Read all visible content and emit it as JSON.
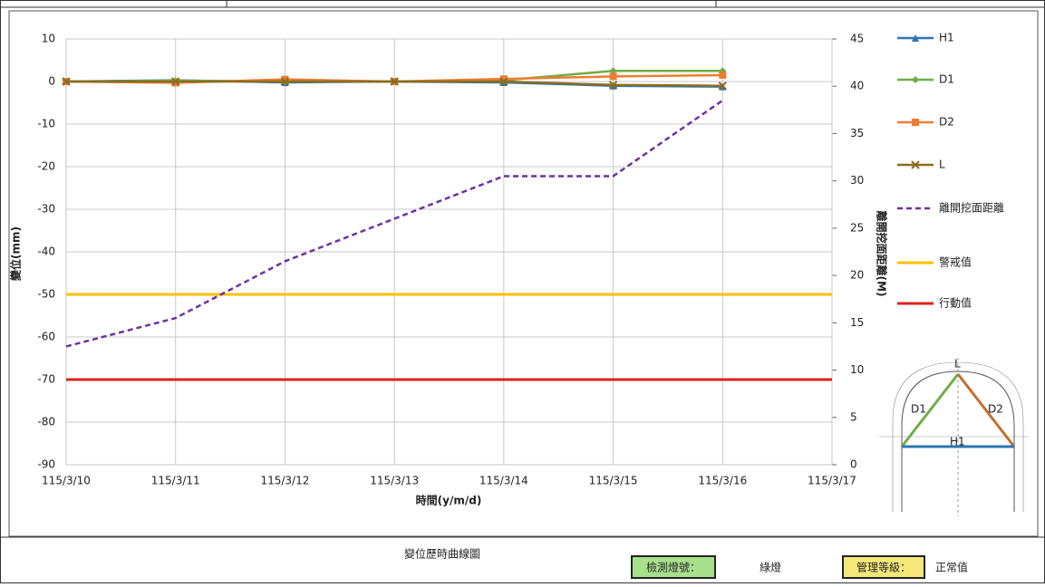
{
  "chart_data": {
    "type": "line",
    "categories": [
      "115/3/10",
      "115/3/11",
      "115/3/12",
      "115/3/13",
      "115/3/14",
      "115/3/15",
      "115/3/16",
      "115/3/17"
    ],
    "ylim": [
      -90,
      10
    ],
    "yticks": [
      10,
      0,
      -10,
      -20,
      -30,
      -40,
      -50,
      -60,
      -70,
      -80,
      -90
    ],
    "y2lim": [
      0,
      45
    ],
    "y2ticks": [
      0,
      5,
      10,
      15,
      20,
      25,
      30,
      35,
      40,
      45
    ],
    "ylabel": "變位(mm)",
    "y2label": "離開挖面距離(M)",
    "xlabel": "時間(y/m/d)",
    "grid": true,
    "series": [
      {
        "name": "H1",
        "color": "#2e75b6",
        "marker": "triangle",
        "values": [
          0,
          0.3,
          -0.2,
          0,
          -0.2,
          -1,
          -1.2,
          null
        ]
      },
      {
        "name": "D1",
        "color": "#70ad47",
        "marker": "diamond",
        "values": [
          0,
          0.2,
          0,
          0,
          0.3,
          2.5,
          2.5,
          null
        ]
      },
      {
        "name": "D2",
        "color": "#ed7d31",
        "marker": "square",
        "values": [
          0,
          -0.3,
          0.5,
          0,
          0.6,
          1.2,
          1.5,
          null
        ]
      },
      {
        "name": "L",
        "color": "#8a6d1e",
        "marker": "x",
        "values": [
          0,
          0,
          0,
          0,
          0,
          -0.8,
          -1,
          null
        ]
      },
      {
        "name": "離開挖面距離",
        "color": "#7030a0",
        "dashed": true,
        "axis": "y2",
        "values": [
          12.5,
          15.5,
          21.5,
          26,
          30.5,
          30.5,
          38.5,
          null
        ]
      }
    ],
    "reference_lines": [
      {
        "name": "警戒值",
        "color": "#ffc000",
        "value": -50
      },
      {
        "name": "行動值",
        "color": "#e02020",
        "value": -70
      }
    ],
    "footer": {
      "caption": "變位歷時曲線圖",
      "light_label": "檢測燈號：",
      "light_value": "綠燈",
      "level_label": "管理等級：",
      "level_value": "正常值"
    },
    "diagram": {
      "top": "L",
      "left": "D1",
      "right": "D2",
      "base": "H1"
    }
  }
}
